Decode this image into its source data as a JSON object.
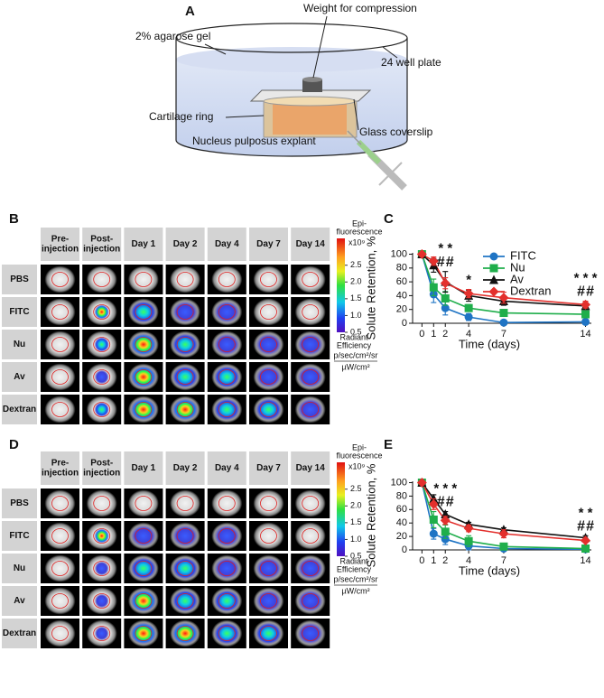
{
  "panels": {
    "a": "A",
    "b": "B",
    "c": "C",
    "d": "D",
    "e": "E"
  },
  "diagram": {
    "weight": "Weight for compression",
    "gel": "2% agarose gel",
    "plate": "24 well plate",
    "ring": "Cartilage ring",
    "coverslip": "Glass coverslip",
    "explant": "Nucleus  pulposus explant"
  },
  "image_grids": [
    {
      "columns": [
        [
          "Pre-",
          "injection"
        ],
        [
          "Post-",
          "injection"
        ],
        [
          "Day 1"
        ],
        [
          "Day 2"
        ],
        [
          "Day 4"
        ],
        [
          "Day 7"
        ],
        [
          "Day 14"
        ]
      ],
      "rows": [
        "PBS",
        "FITC",
        "Nu",
        "Av",
        "Dextran"
      ],
      "colorbar": {
        "title": [
          "Epi-",
          "fluorescence"
        ],
        "multiplier": "x10⁹",
        "lim": [
          0.5,
          3.3
        ],
        "ticks": [
          2.5,
          {
            "value": 2,
            "label": "2.0"
          },
          1.5,
          {
            "value": 1,
            "label": "1.0"
          },
          0.5
        ],
        "unit_title": [
          "Radiant",
          "Efficiency"
        ],
        "unit_num": "p/sec/cm²/sr",
        "unit_den": "µW/cm²"
      }
    },
    {
      "columns": [
        [
          "Pre-",
          "injection"
        ],
        [
          "Post-",
          "injection"
        ],
        [
          "Day 1"
        ],
        [
          "Day 2"
        ],
        [
          "Day 4"
        ],
        [
          "Day 7"
        ],
        [
          "Day 14"
        ]
      ],
      "rows": [
        "PBS",
        "FITC",
        "Nu",
        "Av",
        "Dextran"
      ],
      "colorbar": {
        "title": [
          "Epi-",
          "fluorescence"
        ],
        "multiplier": "x10⁹",
        "lim": [
          0.5,
          3.3
        ],
        "ticks": [
          2.5,
          {
            "value": 2,
            "label": "2.0"
          },
          1.5,
          {
            "value": 1,
            "label": "1.0"
          },
          0.5
        ],
        "unit_title": [
          "Radiant",
          "Efficiency"
        ],
        "unit_num": "p/sec/cm²/sr",
        "unit_den": "µW/cm²"
      }
    }
  ],
  "chart_data": [
    {
      "type": "line",
      "xlabel": "Time (days)",
      "ylabel": "Solute Retention, %",
      "x": [
        0,
        1,
        2,
        4,
        7,
        14
      ],
      "xlim": [
        -0.8,
        14.5
      ],
      "xticks": [
        0,
        1,
        2,
        4,
        7,
        14
      ],
      "ylim": [
        0,
        102
      ],
      "yticks": [
        0,
        20,
        40,
        60,
        80,
        100
      ],
      "legend": "upper right",
      "series": [
        {
          "name": "FITC",
          "color": "#1f74c4",
          "marker": "circle",
          "values": [
            100,
            42,
            22,
            9,
            1,
            2
          ],
          "errors": [
            0,
            12,
            10,
            5,
            3,
            3
          ]
        },
        {
          "name": "Nu",
          "color": "#1fae4b",
          "marker": "square",
          "values": [
            100,
            52,
            36,
            22,
            15,
            13
          ],
          "errors": [
            0,
            12,
            10,
            5,
            4,
            4
          ]
        },
        {
          "name": "Av",
          "color": "#111111",
          "marker": "triangle",
          "values": [
            100,
            84,
            60,
            40,
            32,
            25
          ],
          "errors": [
            0,
            10,
            15,
            8,
            6,
            5
          ]
        },
        {
          "name": "Dextran",
          "color": "#e3302d",
          "marker": "diamond",
          "values": [
            100,
            90,
            58,
            43,
            37,
            27
          ],
          "errors": [
            0,
            6,
            8,
            6,
            8,
            5
          ]
        }
      ],
      "annotations": [
        {
          "x": 2,
          "lines": [
            [
              {
                "text": "*",
                "color": "#111111"
              },
              {
                "text": "*",
                "color": "#e3302d"
              }
            ],
            [
              {
                "text": "#",
                "color": "#111111"
              },
              {
                "text": "#",
                "color": "#e3302d"
              }
            ]
          ]
        },
        {
          "x": 4,
          "lines": [
            [
              {
                "text": "*",
                "color": "#1fae4b"
              }
            ]
          ]
        },
        {
          "x": 14,
          "lines": [
            [
              {
                "text": "*",
                "color": "#111111"
              },
              {
                "text": "*",
                "color": "#e3302d"
              },
              {
                "text": "*",
                "color": "#1fae4b"
              }
            ],
            [
              {
                "text": "#",
                "color": "#111111"
              },
              {
                "text": "#",
                "color": "#e3302d"
              }
            ]
          ]
        }
      ]
    },
    {
      "type": "line",
      "xlabel": "Time (days)",
      "ylabel": "Solute Retention, %",
      "x": [
        0,
        1,
        2,
        4,
        7,
        14
      ],
      "xlim": [
        -0.8,
        14.5
      ],
      "xticks": [
        0,
        1,
        2,
        4,
        7,
        14
      ],
      "ylim": [
        0,
        102
      ],
      "yticks": [
        0,
        20,
        40,
        60,
        80,
        100
      ],
      "series": [
        {
          "color": "#1f74c4",
          "marker": "circle",
          "values": [
            100,
            24,
            16,
            6,
            2,
            1
          ],
          "errors": [
            0,
            8,
            8,
            6,
            3,
            2
          ]
        },
        {
          "color": "#1fae4b",
          "marker": "square",
          "values": [
            100,
            45,
            27,
            13,
            5,
            2
          ],
          "errors": [
            0,
            12,
            10,
            8,
            4,
            2
          ]
        },
        {
          "color": "#111111",
          "marker": "triangle",
          "values": [
            100,
            76,
            53,
            38,
            30,
            18
          ],
          "errors": [
            0,
            6,
            4,
            3,
            3,
            3
          ]
        },
        {
          "color": "#e3302d",
          "marker": "diamond",
          "values": [
            100,
            68,
            44,
            32,
            24,
            14
          ],
          "errors": [
            0,
            8,
            6,
            5,
            6,
            3
          ]
        }
      ],
      "annotations": [
        {
          "x": 2,
          "lines": [
            [
              {
                "text": "*",
                "color": "#111111"
              },
              {
                "text": "*",
                "color": "#e3302d"
              },
              {
                "text": "*",
                "color": "#1fae4b"
              }
            ],
            [
              {
                "text": "#",
                "color": "#111111"
              },
              {
                "text": "#",
                "color": "#e3302d"
              }
            ]
          ]
        },
        {
          "x": 14,
          "lines": [
            [
              {
                "text": "*",
                "color": "#111111"
              },
              {
                "text": "*",
                "color": "#e3302d"
              }
            ],
            [
              {
                "text": "#",
                "color": "#111111"
              },
              {
                "text": "#",
                "color": "#e3302d"
              }
            ]
          ]
        }
      ]
    }
  ]
}
